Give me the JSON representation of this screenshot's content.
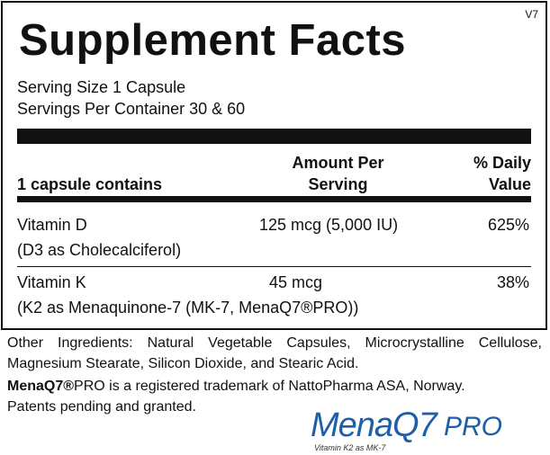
{
  "label": {
    "version": "V7",
    "title": "Supplement Facts",
    "serving_size": "Serving Size 1 Capsule",
    "servings_per_container": "Servings Per Container 30 & 60",
    "header": {
      "contains": "1 capsule contains",
      "amount": "Amount Per Serving",
      "daily_value": "% Daily Value"
    },
    "rows": [
      {
        "name": "Vitamin D",
        "detail": "(D3 as Cholecalciferol)",
        "amount": "125 mcg (5,000 IU)",
        "daily_value": "625%"
      },
      {
        "name": "Vitamin K",
        "detail": "(K2 as Menaquinone-7 (MK-7, MenaQ7®PRO))",
        "amount": "45 mcg",
        "daily_value": "38%"
      }
    ]
  },
  "other_ingredients": "Other Ingredients: Natural Vegetable Capsules, Microcrystalline Cellulose, Magnesium Stearate, Silicon Dioxide, and Stearic Acid.",
  "trademark": {
    "brand": "MenaQ7®",
    "text": "PRO is a registered trademark of NattoPharma ASA, Norway."
  },
  "patents": "Patents pending and granted.",
  "logo": {
    "name": "MenaQ7",
    "suffix": "PRO",
    "tagline": "Vitamin K2 as MK-7"
  }
}
